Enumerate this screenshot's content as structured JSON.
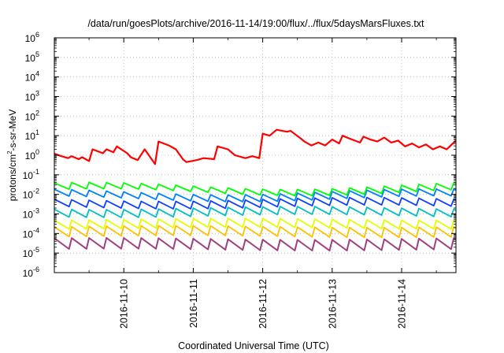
{
  "chart_data": {
    "type": "line",
    "title": "/data/run/goesPlots/archive/2016-11-14/19:00/flux/../flux/5daysMarsFluxes.txt",
    "xlabel": "Coordinated Universal Time (UTC)",
    "ylabel": {
      "base": "protons/cm",
      "sup": "2",
      "rest": "-s-sr-MeV"
    },
    "yscale": "log",
    "ylim_exp": [
      -6,
      6
    ],
    "ytick_base": "10",
    "yticks_exp": [
      "-6",
      "-5",
      "-4",
      "-3",
      "-2",
      "-1",
      "0",
      "1",
      "2",
      "3",
      "4",
      "5",
      "6"
    ],
    "xlim": [
      "2016-11-09 00:00",
      "2016-11-14 19:00"
    ],
    "xticks": [
      "2016-11-10",
      "2016-11-11",
      "2016-11-12",
      "2016-11-13",
      "2016-11-14"
    ],
    "grid": true,
    "legend": false,
    "series": [
      {
        "color": "#ff0000",
        "width": 2.2,
        "x_days": [
          0.0,
          0.1,
          0.2,
          0.25,
          0.35,
          0.4,
          0.5,
          0.55,
          0.7,
          0.75,
          0.85,
          0.9,
          1.05,
          1.1,
          1.2,
          1.3,
          1.45,
          1.5,
          1.65,
          1.75,
          1.85,
          1.9,
          2.05,
          2.15,
          2.3,
          2.35,
          2.5,
          2.6,
          2.75,
          2.85,
          2.95,
          3.0,
          3.1,
          3.2,
          3.35,
          3.4,
          3.55,
          3.6,
          3.7,
          3.8,
          3.9,
          4.0,
          4.1,
          4.15,
          4.25,
          4.4,
          4.45,
          4.55,
          4.65,
          4.75,
          4.85,
          4.95,
          5.05,
          5.15,
          5.25,
          5.35,
          5.45,
          5.55,
          5.65,
          5.75,
          5.79
        ],
        "y_exp": [
          0.08,
          -0.05,
          -0.15,
          -0.05,
          -0.2,
          -0.1,
          -0.3,
          0.3,
          0.1,
          0.3,
          0.15,
          0.45,
          0.1,
          -0.1,
          -0.25,
          0.3,
          -0.45,
          0.7,
          0.5,
          0.3,
          -0.2,
          -0.35,
          -0.25,
          -0.15,
          -0.2,
          0.45,
          0.3,
          0.0,
          -0.15,
          -0.05,
          -0.15,
          1.1,
          1.0,
          1.3,
          1.2,
          1.25,
          0.85,
          0.7,
          0.5,
          0.65,
          0.5,
          0.8,
          0.6,
          1.0,
          0.85,
          0.65,
          0.95,
          0.8,
          0.7,
          0.9,
          0.65,
          0.75,
          0.45,
          0.6,
          0.4,
          0.55,
          0.3,
          0.45,
          0.3,
          0.65,
          0.75
        ]
      },
      {
        "color": "#00ff00",
        "width": 1.8,
        "base_exp": -1.73,
        "amp": 0.32,
        "trend": 0.18
      },
      {
        "color": "#0080ff",
        "width": 1.8,
        "base_exp": -2.05,
        "amp": 0.35,
        "trend": 0.15
      },
      {
        "color": "#1040ff",
        "width": 1.8,
        "base_exp": -2.45,
        "amp": 0.38,
        "trend": 0.1
      },
      {
        "color": "#00c0c0",
        "width": 1.8,
        "base_exp": -2.9,
        "amp": 0.4,
        "trend": 0.08
      },
      {
        "color": "#e0ff00",
        "width": 1.8,
        "base_exp": -3.5,
        "amp": 0.45,
        "trend": 0.05
      },
      {
        "color": "#ffc000",
        "width": 1.8,
        "base_exp": -3.9,
        "amp": 0.5,
        "trend": 0.05
      },
      {
        "color": "#a04080",
        "width": 2.0,
        "base_exp": -4.55,
        "amp": 0.55,
        "trend": 0.05
      }
    ]
  }
}
